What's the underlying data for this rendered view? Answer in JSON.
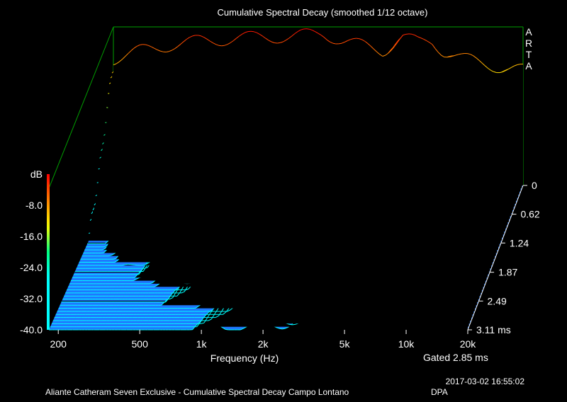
{
  "chart_data": {
    "type": "waterfall-3d",
    "title": "Cumulative Spectral Decay (smoothed 1/12 octave)",
    "xlabel": "Frequency (Hz)",
    "x_tick_labels": [
      "200",
      "500",
      "1k",
      "2k",
      "5k",
      "10k",
      "20k"
    ],
    "x_ticks_hz": [
      200,
      500,
      1000,
      2000,
      5000,
      10000,
      20000
    ],
    "xlim_hz": [
      180,
      20000
    ],
    "ylabel": "dB",
    "y_tick_labels": [
      "dB",
      "-8.0",
      "-16.0",
      "-24.0",
      "-32.0",
      "-40.0"
    ],
    "ylim_db": [
      -40,
      0
    ],
    "time_tick_labels": [
      "0",
      "0.62",
      "1.24",
      "1.87",
      "2.49",
      "3.11 ms"
    ],
    "time_ticks_ms": [
      0,
      0.62,
      1.24,
      1.87,
      2.49,
      3.11
    ],
    "gated_label": "Gated 2.85 ms",
    "side_label": "ARTA",
    "colormap": [
      "#ff0000",
      "#ff8000",
      "#ffff00",
      "#00ff80",
      "#00ffff"
    ],
    "floor_color": "#1e78ff",
    "wall_color": "#00a000",
    "slice_count": 48,
    "spectrum_at_0ms": {
      "freq_hz": [
        180,
        250,
        350,
        500,
        700,
        1000,
        1400,
        2000,
        2500,
        3000,
        4000,
        5000,
        6000,
        7000,
        8000,
        10000,
        12000,
        15000,
        20000
      ],
      "level_db": [
        -8,
        -6,
        -4.5,
        -3.5,
        -3,
        -2.5,
        -2.5,
        -1.5,
        -3.5,
        -4.5,
        -6,
        -2.5,
        -4,
        -3.5,
        -6,
        -8,
        -9,
        -10,
        -11
      ]
    }
  },
  "footer": {
    "timestamp": "2017-03-02  16:55:02",
    "caption": "Aliante Catheram Seven Exclusive - Cumulative Spectral Decay Campo Lontano",
    "mic": "DPA"
  }
}
